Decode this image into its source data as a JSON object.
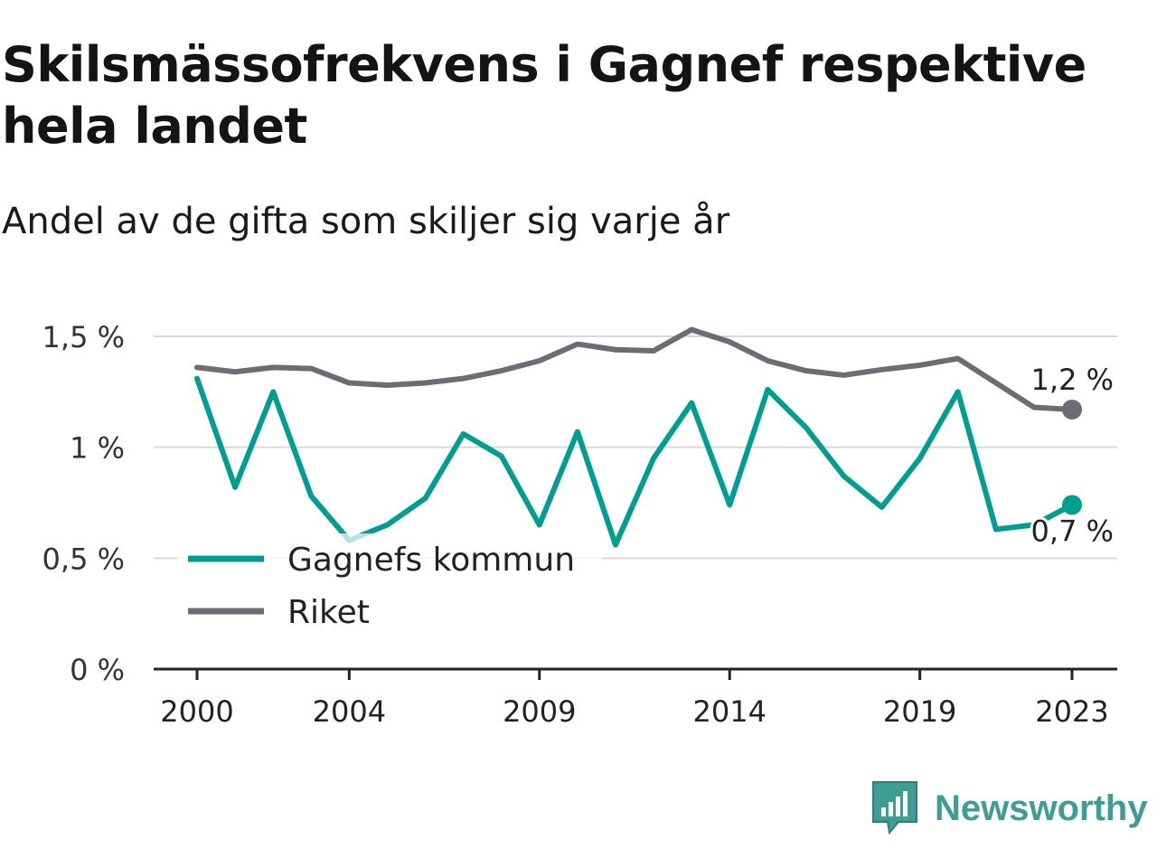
{
  "title": "Skilsmässofrekvens i Gagnef respektive hela landet",
  "subtitle": "Andel av de gifta som skiljer sig varje år",
  "brand": "Newsworthy",
  "colors": {
    "gagnef": "#009e8f",
    "riket": "#6d6c74",
    "grid": "#d9d9d9",
    "axis": "#222222"
  },
  "chart_data": {
    "type": "line",
    "title": "Skilsmässofrekvens i Gagnef respektive hela landet",
    "subtitle": "Andel av de gifta som skiljer sig varje år",
    "x": [
      2000,
      2001,
      2002,
      2003,
      2004,
      2005,
      2006,
      2007,
      2008,
      2009,
      2010,
      2011,
      2012,
      2013,
      2014,
      2015,
      2016,
      2017,
      2018,
      2019,
      2020,
      2021,
      2022,
      2023
    ],
    "x_tick_labels": [
      "2000",
      "2004",
      "2009",
      "2014",
      "2019",
      "2023"
    ],
    "x_ticks": [
      2000,
      2004,
      2009,
      2014,
      2019,
      2023
    ],
    "y_ticks": [
      0,
      0.5,
      1,
      1.5
    ],
    "y_tick_labels": [
      "0 %",
      "0,5 %",
      "1 %",
      "1,5 %"
    ],
    "ylim": [
      0,
      1.5
    ],
    "grid": true,
    "legend_position": "bottom-left",
    "series": [
      {
        "name": "Gagnefs kommun",
        "color": "#009e8f",
        "values": [
          1.31,
          0.82,
          1.25,
          0.78,
          0.58,
          0.65,
          0.77,
          1.06,
          0.96,
          0.65,
          1.07,
          0.56,
          0.95,
          1.2,
          0.74,
          1.26,
          1.09,
          0.87,
          0.73,
          0.95,
          1.25,
          0.63,
          0.65,
          0.74
        ],
        "end_label": "0,7 %"
      },
      {
        "name": "Riket",
        "color": "#6d6c74",
        "values": [
          1.36,
          1.34,
          1.36,
          1.355,
          1.29,
          1.28,
          1.29,
          1.31,
          1.345,
          1.39,
          1.465,
          1.44,
          1.435,
          1.53,
          1.475,
          1.39,
          1.345,
          1.325,
          1.35,
          1.37,
          1.4,
          1.29,
          1.18,
          1.17
        ],
        "end_label": "1,2 %"
      }
    ]
  }
}
